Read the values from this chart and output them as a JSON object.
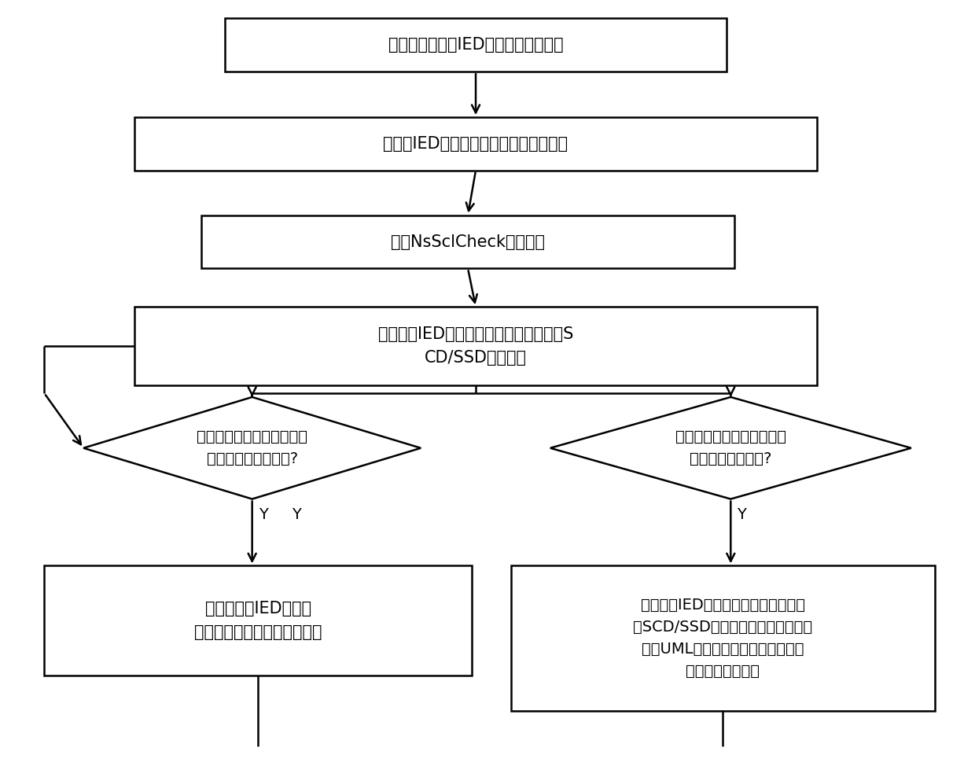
{
  "bg_color": "#ffffff",
  "box_color": "#ffffff",
  "box_edge": "#000000",
  "text_color": "#000000",
  "arrow_color": "#000000",
  "lw": 1.8,
  "box1_text": "预先对变电站层IED设备进行统一建模",
  "box2_text": "将所有IED设备的厂家初始模型文件导入",
  "box3_text": "进行NsSclCheck静态检查",
  "box4_text": "生成所有IED设备共用的统一数据结构的S\nCD/SSD工程文件",
  "d1_text": "需要针对指定的站控层设备\n进行文件数据的下装?",
  "d2_text": "需要进行站控层设备数据库\n及图形文件的配置?",
  "box5_text": "针对指定的IED设备，\n采用对应的下载途径进行下装",
  "box6_text": "基于所有IED设备共用的统一数据结构\n的SCD/SSD工程文件，采用统一建模\n语言UML进行站控层设备所需数据库\n及图形文件的配置",
  "y_label": "Y",
  "font_size_main": 15,
  "font_size_small": 14
}
